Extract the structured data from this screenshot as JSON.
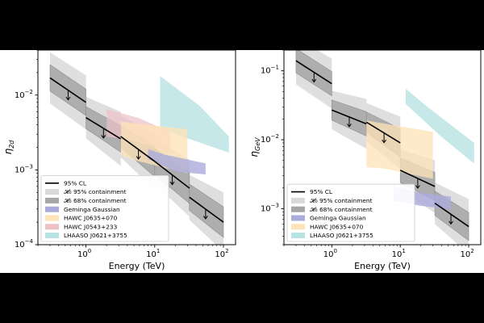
{
  "chart_data": [
    {
      "type": "line",
      "xlabel": "Energy (TeV)",
      "ylabel": "η",
      "ylabel_sub": "2d",
      "xscale": "log",
      "yscale": "log",
      "xlim": [
        0.2,
        150
      ],
      "ylim": [
        0.0001,
        0.04
      ],
      "xticks": [
        {
          "value": 1,
          "base": "10",
          "exp": "0"
        },
        {
          "value": 10,
          "base": "10",
          "exp": "1"
        },
        {
          "value": 100,
          "base": "10",
          "exp": "2"
        }
      ],
      "yticks": [
        {
          "value": 0.0001,
          "base": "10",
          "exp": "−4"
        },
        {
          "value": 0.001,
          "base": "10",
          "exp": "−3"
        },
        {
          "value": 0.01,
          "base": "10",
          "exp": "−2"
        }
      ],
      "grid": false,
      "legend_position": "lower-left",
      "legend": [
        {
          "label": "95% CL",
          "kind": "line",
          "color": "#000000"
        },
        {
          "label": "𝓗₀ 95% containment",
          "kind": "patch",
          "color": "#d9d9d9"
        },
        {
          "label": "𝓗₀ 68% containment",
          "kind": "patch",
          "color": "#a6a6a6"
        },
        {
          "label": "Geminga Gaussian",
          "kind": "patch",
          "color": "#aaaadc"
        },
        {
          "label": "HAWC J0635+070",
          "kind": "patch",
          "color": "#fde3b5"
        },
        {
          "label": "HAWC J0543+233",
          "kind": "patch",
          "color": "#ecc1c6"
        },
        {
          "label": "LHAASO J0621+3755",
          "kind": "patch",
          "color": "#b9e2e2"
        }
      ],
      "bins": [
        {
          "x": [
            0.3,
            1.0
          ],
          "y": [
            0.017,
            0.008
          ],
          "band68": [
            1.5,
            1.5
          ],
          "band95": [
            2.2,
            2.3
          ],
          "arrow_x": 0.55
        },
        {
          "x": [
            1.0,
            3.2
          ],
          "y": [
            0.005,
            0.0026
          ],
          "band68": [
            1.4,
            1.5
          ],
          "band95": [
            1.9,
            2.3
          ],
          "arrow_x": 1.8
        },
        {
          "x": [
            3.2,
            10.0
          ],
          "y": [
            0.0028,
            0.0013
          ],
          "band68": [
            1.4,
            1.6
          ],
          "band95": [
            1.9,
            2.4
          ],
          "arrow_x": 5.8
        },
        {
          "x": [
            10.0,
            32.0
          ],
          "y": [
            0.0013,
            0.00057
          ],
          "band68": [
            1.5,
            1.6
          ],
          "band95": [
            2.0,
            2.4
          ],
          "arrow_x": 18.0
        },
        {
          "x": [
            32.0,
            100.0
          ],
          "y": [
            0.00043,
            0.0002
          ],
          "band68": [
            1.5,
            1.6
          ],
          "band95": [
            2.0,
            2.5
          ],
          "arrow_x": 55.0
        }
      ],
      "regions": [
        {
          "name": "LHAASO J0621+3755",
          "color": "#b9e2e2",
          "opacity": 0.8,
          "points": [
            [
              12,
              0.0036
            ],
            [
              25,
              0.0028
            ],
            [
              120,
              0.0017
            ],
            [
              120,
              0.0028
            ],
            [
              45,
              0.0072
            ],
            [
              12,
              0.018
            ]
          ]
        },
        {
          "name": "HAWC J0543+233",
          "color": "#ecc1c6",
          "opacity": 0.7,
          "points": [
            [
              2.0,
              0.0028
            ],
            [
              4.5,
              0.0025
            ],
            [
              17,
              0.0017
            ],
            [
              17,
              0.0032
            ],
            [
              6,
              0.0049
            ],
            [
              2.0,
              0.0065
            ]
          ]
        },
        {
          "name": "HAWC J0635+070",
          "color": "#fde3b5",
          "opacity": 0.75,
          "points": [
            [
              3.2,
              0.0016
            ],
            [
              3.2,
              0.0044
            ],
            [
              30,
              0.0035
            ],
            [
              30,
              0.0009
            ],
            [
              5,
              0.00135
            ]
          ]
        },
        {
          "name": "Geminga Gaussian",
          "color": "#aaaadc",
          "opacity": 0.8,
          "points": [
            [
              8,
              0.0014
            ],
            [
              8,
              0.0019
            ],
            [
              14,
              0.0016
            ],
            [
              55,
              0.00122
            ],
            [
              55,
              0.00087
            ],
            [
              20,
              0.00095
            ]
          ]
        }
      ]
    },
    {
      "type": "line",
      "xlabel": "Energy (TeV)",
      "ylabel": "η",
      "ylabel_sub": "GeV",
      "xscale": "log",
      "yscale": "log",
      "xlim": [
        0.2,
        150
      ],
      "ylim": [
        0.0003,
        0.2
      ],
      "xticks": [
        {
          "value": 1,
          "base": "10",
          "exp": "0"
        },
        {
          "value": 10,
          "base": "10",
          "exp": "1"
        },
        {
          "value": 100,
          "base": "10",
          "exp": "2"
        }
      ],
      "yticks": [
        {
          "value": 0.001,
          "base": "10",
          "exp": "−3"
        },
        {
          "value": 0.01,
          "base": "10",
          "exp": "−2"
        },
        {
          "value": 0.1,
          "base": "10",
          "exp": "−1"
        }
      ],
      "grid": false,
      "legend_position": "lower-left",
      "legend": [
        {
          "label": "95% CL",
          "kind": "line",
          "color": "#000000"
        },
        {
          "label": "𝓗₀ 95% containment",
          "kind": "patch",
          "color": "#d9d9d9"
        },
        {
          "label": "𝓗₀ 68% containment",
          "kind": "patch",
          "color": "#a6a6a6"
        },
        {
          "label": "Geminga Gaussian",
          "kind": "patch",
          "color": "#aaaadc"
        },
        {
          "label": "HAWC J0635+070",
          "kind": "patch",
          "color": "#fde3b5"
        },
        {
          "label": "LHAASO J0621+3755",
          "kind": "patch",
          "color": "#b9e2e2"
        }
      ],
      "bins": [
        {
          "x": [
            0.3,
            1.0
          ],
          "y": [
            0.14,
            0.065
          ],
          "band68": [
            1.5,
            1.5
          ],
          "band95": [
            2.2,
            2.3
          ],
          "arrow_x": 0.55
        },
        {
          "x": [
            1.0,
            3.2
          ],
          "y": [
            0.027,
            0.017
          ],
          "band68": [
            1.4,
            1.5
          ],
          "band95": [
            1.9,
            2.3
          ],
          "arrow_x": 1.8
        },
        {
          "x": [
            3.2,
            10.0
          ],
          "y": [
            0.018,
            0.009
          ],
          "band68": [
            1.4,
            1.6
          ],
          "band95": [
            1.9,
            2.4
          ],
          "arrow_x": 5.8
        },
        {
          "x": [
            10.0,
            32.0
          ],
          "y": [
            0.0036,
            0.0021
          ],
          "band68": [
            1.5,
            1.6
          ],
          "band95": [
            2.0,
            2.4
          ],
          "arrow_x": 18.0
        },
        {
          "x": [
            32.0,
            100.0
          ],
          "y": [
            0.0012,
            0.00055
          ],
          "band68": [
            1.5,
            1.6
          ],
          "band95": [
            2.0,
            2.5
          ],
          "arrow_x": 55.0
        }
      ],
      "regions": [
        {
          "name": "LHAASO J0621+3755",
          "color": "#b9e2e2",
          "opacity": 0.8,
          "points": [
            [
              12,
              0.055
            ],
            [
              25,
              0.03
            ],
            [
              120,
              0.009
            ],
            [
              120,
              0.0045
            ],
            [
              40,
              0.011
            ],
            [
              12,
              0.033
            ]
          ]
        },
        {
          "name": "HAWC J0635+070",
          "color": "#fde3b5",
          "opacity": 0.75,
          "points": [
            [
              3.2,
              0.004
            ],
            [
              3.2,
              0.019
            ],
            [
              30,
              0.013
            ],
            [
              30,
              0.0027
            ],
            [
              6,
              0.0038
            ]
          ]
        },
        {
          "name": "Geminga Gaussian",
          "color": "#aaaadc",
          "opacity": 0.8,
          "points": [
            [
              8,
              0.0013
            ],
            [
              8,
              0.0021
            ],
            [
              20,
              0.0017
            ],
            [
              55,
              0.0015
            ],
            [
              55,
              0.00098
            ],
            [
              20,
              0.0011
            ]
          ]
        }
      ]
    }
  ]
}
